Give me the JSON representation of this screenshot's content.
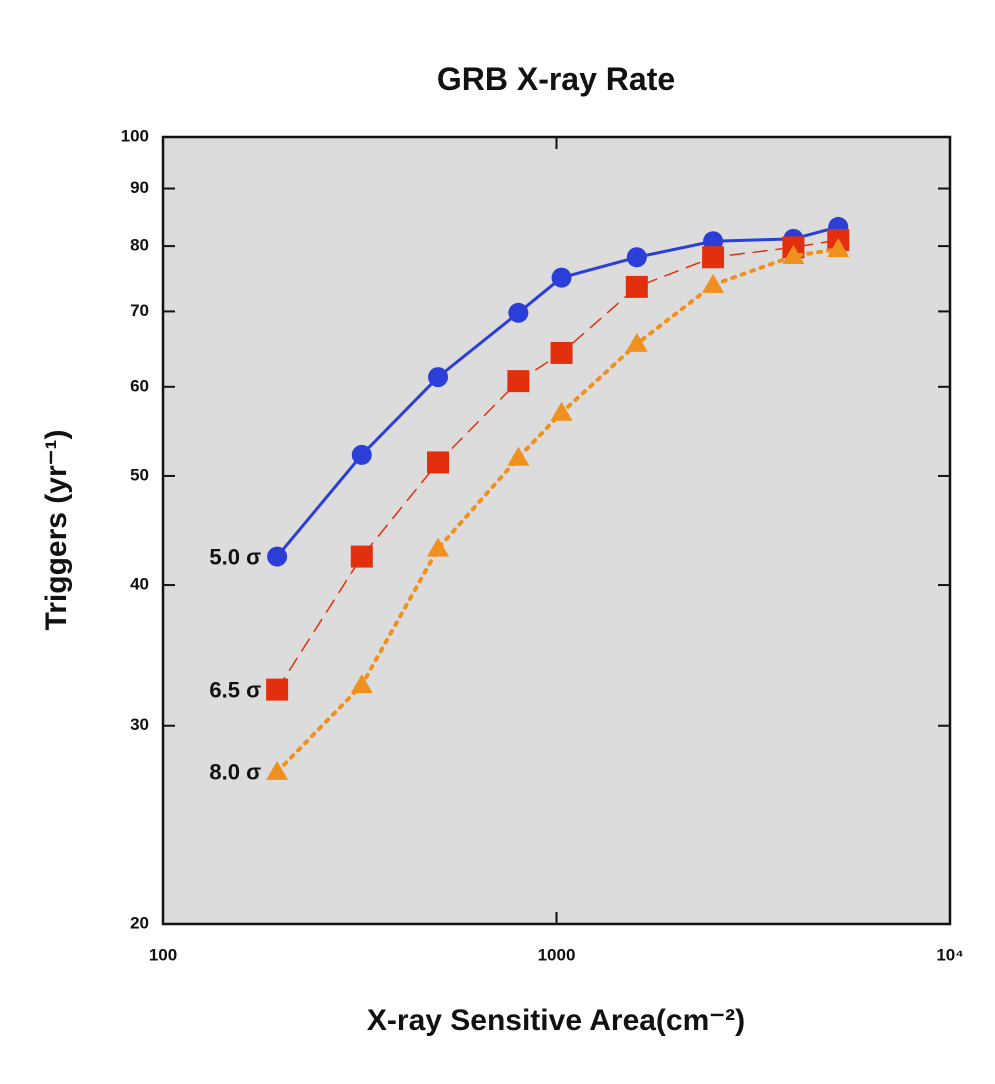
{
  "chart_data": {
    "type": "line",
    "title": "GRB X-ray Rate",
    "x_label": "X-ray Sensitive Area(cm⁻²)",
    "y_label": "Triggers (yr⁻¹)",
    "x_scale": "log",
    "y_scale": "log",
    "xlim": [
      100,
      10000
    ],
    "ylim": [
      20,
      100
    ],
    "xticks": [
      100,
      1000,
      {
        "value": 10000,
        "label": "10⁴"
      }
    ],
    "yticks": [
      20,
      30,
      40,
      50,
      60,
      70,
      80,
      90,
      100
    ],
    "x": [
      195,
      320,
      500,
      800,
      1030,
      1600,
      2500,
      4000,
      5200
    ],
    "series": [
      {
        "name": "5.0 σ",
        "color": "#2b3fd8",
        "line_style": "solid",
        "marker": "circle",
        "values": [
          42.4,
          52.2,
          61.2,
          69.8,
          75.0,
          78.2,
          80.8,
          81.2,
          83.2
        ]
      },
      {
        "name": "6.5 σ",
        "color": "#e2300e",
        "line_style": "dashed",
        "marker": "square",
        "values": [
          32.3,
          42.4,
          51.4,
          60.7,
          64.3,
          73.6,
          78.2,
          79.8,
          81.0
        ]
      },
      {
        "name": "8.0 σ",
        "color": "#f0901e",
        "line_style": "dotted",
        "marker": "triangle",
        "values": [
          27.3,
          32.6,
          43.1,
          51.9,
          56.9,
          65.5,
          73.9,
          78.4,
          79.5
        ]
      }
    ]
  }
}
